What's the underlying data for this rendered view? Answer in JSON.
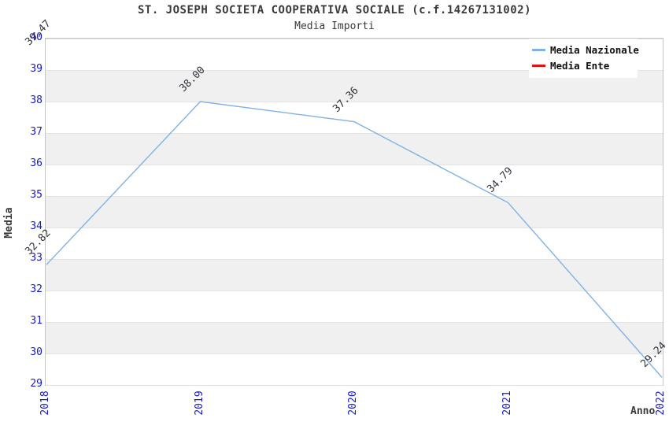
{
  "title": "ST. JOSEPH SOCIETA COOPERATIVA SOCIALE (c.f.14267131002)",
  "subtitle": "Media Importi",
  "chart_data": {
    "type": "line",
    "x": [
      2018,
      2019,
      2020,
      2021,
      2022
    ],
    "xticks": [
      "2018",
      "2019",
      "2020",
      "2021",
      "2022"
    ],
    "series": [
      {
        "name": "Media Nazionale",
        "color": "#7fb2e6",
        "values": [
          32.82,
          38.0,
          37.36,
          34.79,
          29.24
        ]
      },
      {
        "name": "Media Ente",
        "color": "#e01212",
        "values": [
          39.47,
          null,
          null,
          null,
          null
        ]
      }
    ],
    "title": "ST. JOSEPH SOCIETA COOPERATIVA SOCIALE (c.f.14267131002)",
    "subtitle": "Media Importi",
    "xlabel": "Anno",
    "ylabel": "Media",
    "ylim": [
      29,
      40
    ],
    "yticks": [
      29,
      30,
      31,
      32,
      33,
      34,
      35,
      36,
      37,
      38,
      39,
      40
    ],
    "grid": "horizontal-bands-alternating",
    "legend_position": "top-right",
    "point_label_decimals": 2
  },
  "colors": {
    "tick_label_blue": "#1717ce",
    "band_gray": "#f0f0f0",
    "gridline": "#e2e2e2",
    "plot_border": "#c4c4c4",
    "point_label": "#32323c",
    "title_text": "#3a3a3a",
    "background": "#ffffff"
  }
}
